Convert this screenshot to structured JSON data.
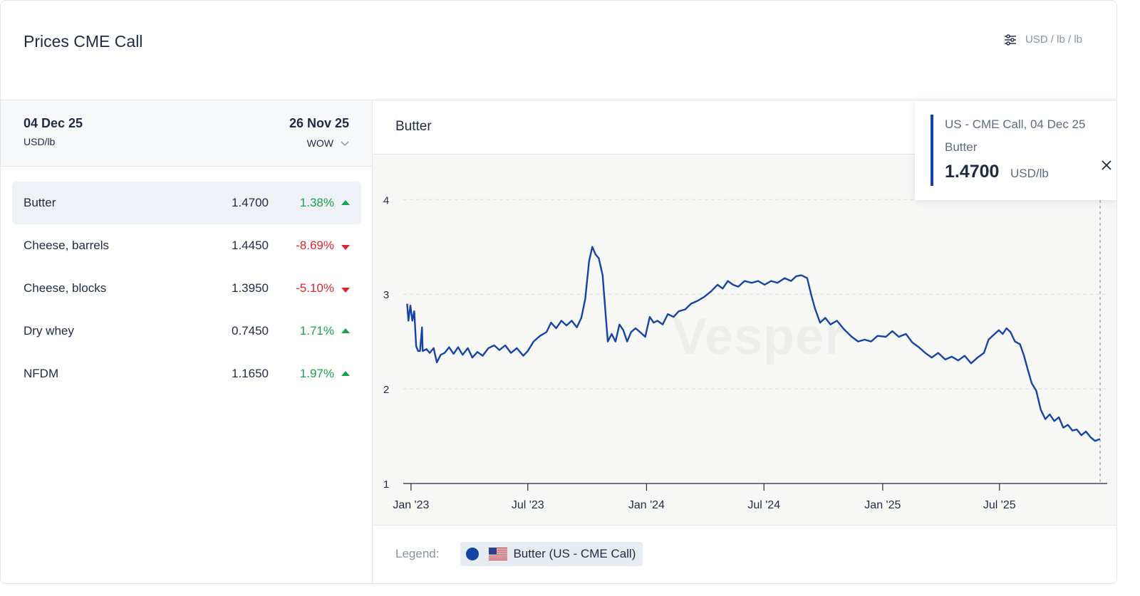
{
  "header": {
    "title": "Prices CME Call",
    "unit_label": "USD / lb / lb"
  },
  "table": {
    "current_date": "04 Dec 25",
    "unit": "USD/lb",
    "compare_date": "26 Nov 25",
    "period": "WOW",
    "rows": [
      {
        "name": "Butter",
        "price": "1.4700",
        "change": "1.38%",
        "direction": "up",
        "selected": true
      },
      {
        "name": "Cheese, barrels",
        "price": "1.4450",
        "change": "-8.69%",
        "direction": "down",
        "selected": false
      },
      {
        "name": "Cheese, blocks",
        "price": "1.3950",
        "change": "-5.10%",
        "direction": "down",
        "selected": false
      },
      {
        "name": "Dry whey",
        "price": "0.7450",
        "change": "1.71%",
        "direction": "up",
        "selected": false
      },
      {
        "name": "NFDM",
        "price": "1.1650",
        "change": "1.97%",
        "direction": "up",
        "selected": false
      }
    ]
  },
  "chart_panel": {
    "title": "Butter",
    "watermark": "Vesper",
    "tooltip": {
      "source": "US - CME Call, 04 Dec 25",
      "series": "Butter",
      "value": "1.4700",
      "unit": "USD/lb"
    },
    "legend_label": "Legend:",
    "legend_item": "Butter (US - CME Call)"
  },
  "colors": {
    "series": "#1644a6",
    "up": "#17a34a",
    "down": "#e0242f"
  },
  "icons": [
    "sliders-icon",
    "chevron-down-icon",
    "close-icon",
    "us-flag-icon"
  ],
  "chart_data": {
    "type": "line",
    "title": "Butter",
    "xlabel": "",
    "ylabel": "",
    "ylim": [
      1,
      4.1
    ],
    "yticks": [
      1,
      2,
      3,
      4
    ],
    "xticks": [
      {
        "label": "Jan '23",
        "date": "2023-01-01"
      },
      {
        "label": "Jul '23",
        "date": "2023-07-01"
      },
      {
        "label": "Jan '24",
        "date": "2024-01-01"
      },
      {
        "label": "Jul '24",
        "date": "2024-07-01"
      },
      {
        "label": "Jan '25",
        "date": "2025-01-01"
      },
      {
        "label": "Jul '25",
        "date": "2025-07-01"
      }
    ],
    "xlim": [
      "2022-12-20",
      "2025-12-15"
    ],
    "grid": true,
    "series": [
      {
        "name": "Butter (US - CME Call)",
        "points": [
          [
            "2022-12-26",
            2.9
          ],
          [
            "2022-12-28",
            2.72
          ],
          [
            "2022-12-31",
            2.88
          ],
          [
            "2023-01-03",
            2.72
          ],
          [
            "2023-01-06",
            2.82
          ],
          [
            "2023-01-09",
            2.45
          ],
          [
            "2023-01-12",
            2.4
          ],
          [
            "2023-01-15",
            2.4
          ],
          [
            "2023-01-18",
            2.65
          ],
          [
            "2023-01-19",
            2.4
          ],
          [
            "2023-01-25",
            2.42
          ],
          [
            "2023-01-30",
            2.38
          ],
          [
            "2023-02-05",
            2.43
          ],
          [
            "2023-02-10",
            2.28
          ],
          [
            "2023-02-16",
            2.36
          ],
          [
            "2023-02-22",
            2.38
          ],
          [
            "2023-03-01",
            2.44
          ],
          [
            "2023-03-08",
            2.37
          ],
          [
            "2023-03-15",
            2.44
          ],
          [
            "2023-03-22",
            2.36
          ],
          [
            "2023-03-30",
            2.43
          ],
          [
            "2023-04-06",
            2.33
          ],
          [
            "2023-04-14",
            2.39
          ],
          [
            "2023-04-22",
            2.35
          ],
          [
            "2023-05-01",
            2.43
          ],
          [
            "2023-05-10",
            2.46
          ],
          [
            "2023-05-18",
            2.41
          ],
          [
            "2023-05-27",
            2.46
          ],
          [
            "2023-06-05",
            2.38
          ],
          [
            "2023-06-14",
            2.43
          ],
          [
            "2023-06-24",
            2.35
          ],
          [
            "2023-07-01",
            2.4
          ],
          [
            "2023-07-10",
            2.5
          ],
          [
            "2023-07-20",
            2.56
          ],
          [
            "2023-07-30",
            2.6
          ],
          [
            "2023-08-06",
            2.7
          ],
          [
            "2023-08-14",
            2.64
          ],
          [
            "2023-08-22",
            2.72
          ],
          [
            "2023-08-30",
            2.67
          ],
          [
            "2023-09-07",
            2.72
          ],
          [
            "2023-09-15",
            2.65
          ],
          [
            "2023-09-22",
            2.75
          ],
          [
            "2023-09-28",
            2.95
          ],
          [
            "2023-10-04",
            3.35
          ],
          [
            "2023-10-09",
            3.5
          ],
          [
            "2023-10-14",
            3.42
          ],
          [
            "2023-10-19",
            3.38
          ],
          [
            "2023-10-25",
            3.2
          ],
          [
            "2023-10-30",
            2.75
          ],
          [
            "2023-11-02",
            2.5
          ],
          [
            "2023-11-08",
            2.58
          ],
          [
            "2023-11-14",
            2.5
          ],
          [
            "2023-11-20",
            2.68
          ],
          [
            "2023-11-26",
            2.62
          ],
          [
            "2023-12-02",
            2.5
          ],
          [
            "2023-12-08",
            2.6
          ],
          [
            "2023-12-15",
            2.64
          ],
          [
            "2023-12-22",
            2.6
          ],
          [
            "2023-12-30",
            2.55
          ],
          [
            "2024-01-06",
            2.76
          ],
          [
            "2024-01-12",
            2.7
          ],
          [
            "2024-01-18",
            2.72
          ],
          [
            "2024-01-26",
            2.68
          ],
          [
            "2024-02-03",
            2.79
          ],
          [
            "2024-02-12",
            2.76
          ],
          [
            "2024-02-20",
            2.82
          ],
          [
            "2024-03-01",
            2.84
          ],
          [
            "2024-03-10",
            2.9
          ],
          [
            "2024-03-20",
            2.93
          ],
          [
            "2024-03-30",
            2.97
          ],
          [
            "2024-04-10",
            3.03
          ],
          [
            "2024-04-20",
            3.1
          ],
          [
            "2024-04-28",
            3.06
          ],
          [
            "2024-05-06",
            3.14
          ],
          [
            "2024-05-14",
            3.1
          ],
          [
            "2024-05-22",
            3.08
          ],
          [
            "2024-06-01",
            3.14
          ],
          [
            "2024-06-12",
            3.12
          ],
          [
            "2024-06-22",
            3.14
          ],
          [
            "2024-07-02",
            3.1
          ],
          [
            "2024-07-12",
            3.14
          ],
          [
            "2024-07-22",
            3.12
          ],
          [
            "2024-08-02",
            3.17
          ],
          [
            "2024-08-12",
            3.14
          ],
          [
            "2024-08-20",
            3.19
          ],
          [
            "2024-08-28",
            3.2
          ],
          [
            "2024-09-06",
            3.17
          ],
          [
            "2024-09-12",
            3.0
          ],
          [
            "2024-09-18",
            2.85
          ],
          [
            "2024-09-26",
            2.7
          ],
          [
            "2024-10-04",
            2.75
          ],
          [
            "2024-10-12",
            2.68
          ],
          [
            "2024-10-22",
            2.72
          ],
          [
            "2024-11-02",
            2.63
          ],
          [
            "2024-11-14",
            2.55
          ],
          [
            "2024-11-24",
            2.5
          ],
          [
            "2024-12-04",
            2.52
          ],
          [
            "2024-12-14",
            2.5
          ],
          [
            "2024-12-24",
            2.56
          ],
          [
            "2025-01-06",
            2.55
          ],
          [
            "2025-01-16",
            2.61
          ],
          [
            "2025-01-26",
            2.55
          ],
          [
            "2025-02-06",
            2.58
          ],
          [
            "2025-02-16",
            2.49
          ],
          [
            "2025-02-26",
            2.44
          ],
          [
            "2025-03-08",
            2.38
          ],
          [
            "2025-03-18",
            2.33
          ],
          [
            "2025-03-28",
            2.38
          ],
          [
            "2025-04-08",
            2.31
          ],
          [
            "2025-04-18",
            2.34
          ],
          [
            "2025-04-28",
            2.3
          ],
          [
            "2025-05-08",
            2.35
          ],
          [
            "2025-05-18",
            2.27
          ],
          [
            "2025-05-28",
            2.33
          ],
          [
            "2025-06-07",
            2.38
          ],
          [
            "2025-06-14",
            2.52
          ],
          [
            "2025-06-22",
            2.57
          ],
          [
            "2025-06-30",
            2.62
          ],
          [
            "2025-07-06",
            2.58
          ],
          [
            "2025-07-12",
            2.64
          ],
          [
            "2025-07-18",
            2.6
          ],
          [
            "2025-07-25",
            2.5
          ],
          [
            "2025-08-02",
            2.47
          ],
          [
            "2025-08-08",
            2.35
          ],
          [
            "2025-08-14",
            2.2
          ],
          [
            "2025-08-20",
            2.06
          ],
          [
            "2025-08-27",
            1.98
          ],
          [
            "2025-09-03",
            1.78
          ],
          [
            "2025-09-10",
            1.68
          ],
          [
            "2025-09-17",
            1.73
          ],
          [
            "2025-09-24",
            1.66
          ],
          [
            "2025-10-01",
            1.7
          ],
          [
            "2025-10-08",
            1.59
          ],
          [
            "2025-10-15",
            1.62
          ],
          [
            "2025-10-22",
            1.56
          ],
          [
            "2025-10-29",
            1.57
          ],
          [
            "2025-11-05",
            1.51
          ],
          [
            "2025-11-12",
            1.55
          ],
          [
            "2025-11-19",
            1.49
          ],
          [
            "2025-11-26",
            1.45
          ],
          [
            "2025-12-04",
            1.47
          ]
        ]
      }
    ],
    "highlight": {
      "date": "2025-12-04",
      "value": 1.47
    },
    "legend": "bottom"
  }
}
